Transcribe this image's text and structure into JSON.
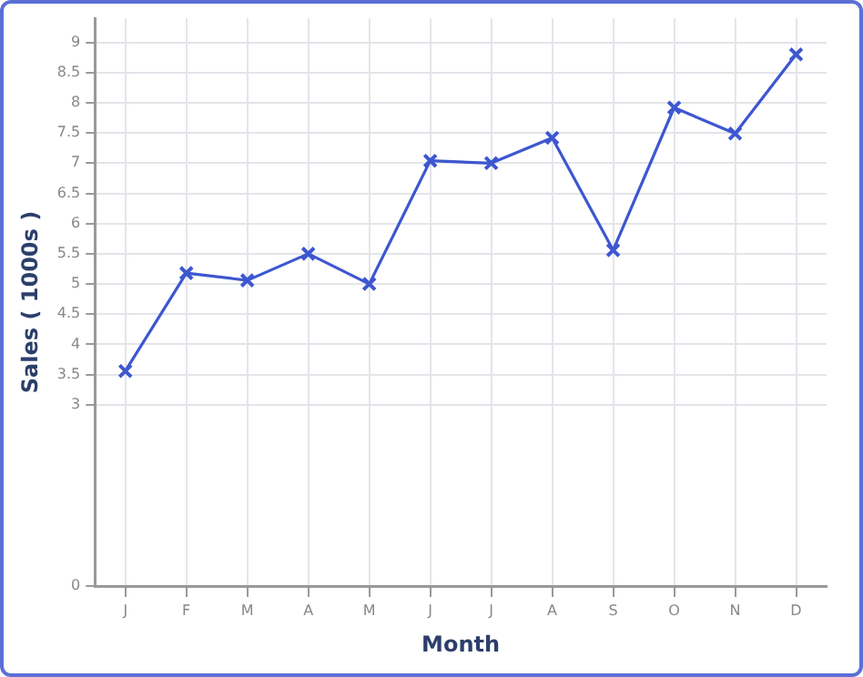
{
  "chart_data": {
    "type": "line",
    "xlabel": "Month",
    "ylabel": "Sales ( 1000s )",
    "categories": [
      "J",
      "F",
      "M",
      "A",
      "M",
      "J",
      "J",
      "A",
      "S",
      "O",
      "N",
      "D"
    ],
    "series": [
      {
        "color": "#3d57d0",
        "values": [
          3.56,
          5.18,
          5.06,
          5.5,
          5.0,
          7.04,
          7.0,
          7.42,
          5.56,
          7.92,
          7.49,
          8.8
        ]
      }
    ],
    "ylim": [
      0,
      9.4
    ],
    "yticks": [
      0,
      3,
      3.5,
      4,
      4.5,
      5,
      5.5,
      6,
      6.5,
      7,
      7.5,
      8,
      8.5,
      9
    ],
    "grid": true,
    "marker": "cross",
    "line_style": "solid",
    "legend": false
  }
}
